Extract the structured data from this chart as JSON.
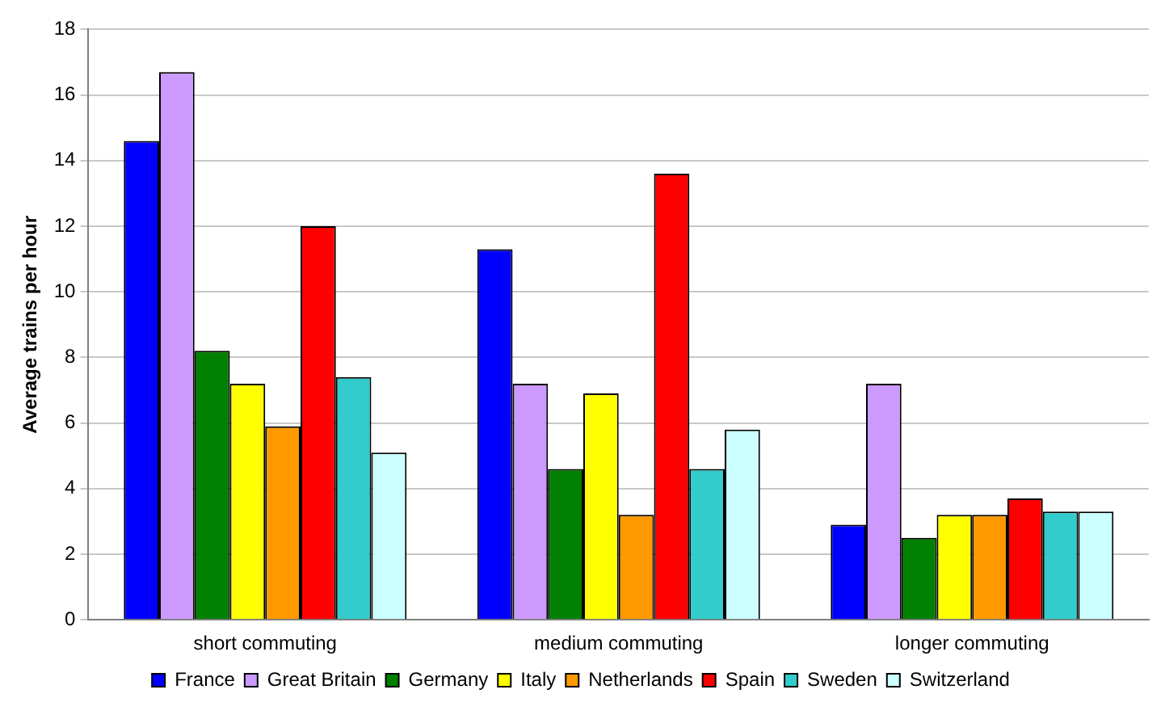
{
  "chart_data": {
    "type": "bar",
    "ylabel": "Average trains per hour",
    "categories": [
      "short commuting",
      "medium commuting",
      "longer commuting"
    ],
    "series": [
      {
        "name": "France",
        "color": "#0000ff",
        "values": [
          14.6,
          11.3,
          2.9
        ]
      },
      {
        "name": "Great Britain",
        "color": "#cc99ff",
        "values": [
          16.7,
          7.2,
          7.2
        ]
      },
      {
        "name": "Germany",
        "color": "#008000",
        "values": [
          8.2,
          4.6,
          2.5
        ]
      },
      {
        "name": "Italy",
        "color": "#ffff00",
        "values": [
          7.2,
          6.9,
          3.2
        ]
      },
      {
        "name": "Netherlands",
        "color": "#ff9900",
        "values": [
          5.9,
          3.2,
          3.2
        ]
      },
      {
        "name": "Spain",
        "color": "#ff0000",
        "values": [
          12.0,
          13.6,
          3.7
        ]
      },
      {
        "name": "Sweden",
        "color": "#33cccc",
        "values": [
          7.4,
          4.6,
          3.3
        ]
      },
      {
        "name": "Switzerland",
        "color": "#ccffff",
        "values": [
          5.1,
          5.8,
          3.3
        ]
      }
    ],
    "ylim": [
      0,
      18
    ],
    "yticks": [
      0,
      2,
      4,
      6,
      8,
      10,
      12,
      14,
      16,
      18
    ],
    "grid": "y",
    "legend": "bottom"
  }
}
